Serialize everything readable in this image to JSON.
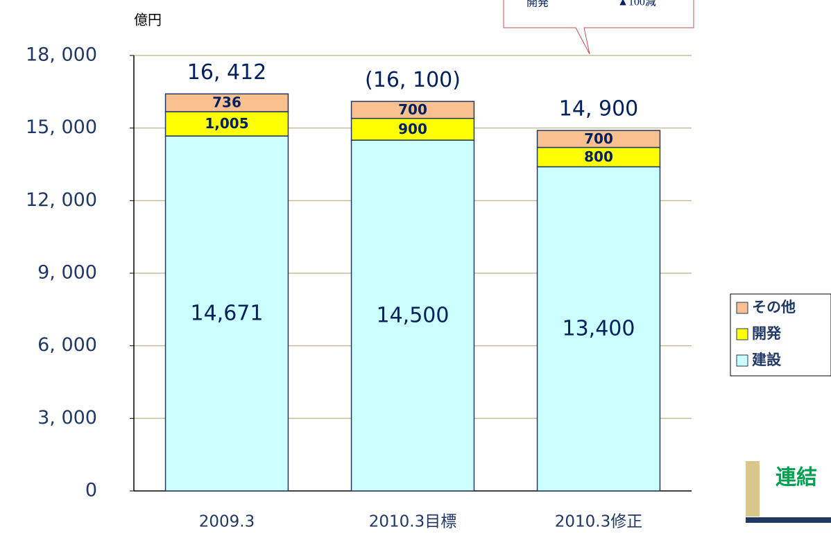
{
  "chart_data": {
    "type": "stacked_bar",
    "y_axis_label": "億円",
    "categories": [
      "2009.3",
      "2010.3目標",
      "2010.3修正"
    ],
    "series": [
      {
        "name": "建設",
        "color": "#ccffff",
        "values": [
          14671,
          14500,
          13400
        ],
        "value_labels": [
          "14,671",
          "14,500",
          "13,400"
        ]
      },
      {
        "name": "開発",
        "color": "#ffff00",
        "values": [
          1005,
          900,
          800
        ],
        "value_labels": [
          "1,005",
          "900",
          "800"
        ]
      },
      {
        "name": "その他",
        "color": "#fac090",
        "values": [
          736,
          700,
          700
        ],
        "value_labels": [
          "736",
          "700",
          "700"
        ]
      }
    ],
    "total_labels": [
      "16, 412",
      "(16, 100)",
      "14, 900"
    ],
    "ylim": [
      0,
      18000
    ],
    "yticks": [
      0,
      {
        "value": 3000,
        "label": "3, 000"
      },
      {
        "value": 6000,
        "label": "6, 000"
      },
      {
        "value": 9000,
        "label": "9, 000"
      },
      {
        "value": 12000,
        "label": "12, 000"
      },
      {
        "value": 15000,
        "label": "15, 000"
      },
      {
        "value": 18000,
        "label": "18, 000"
      }
    ],
    "grid": true,
    "legend": "right",
    "callout": [
      "開発",
      "▲100減"
    ],
    "corner_label": "連結"
  }
}
